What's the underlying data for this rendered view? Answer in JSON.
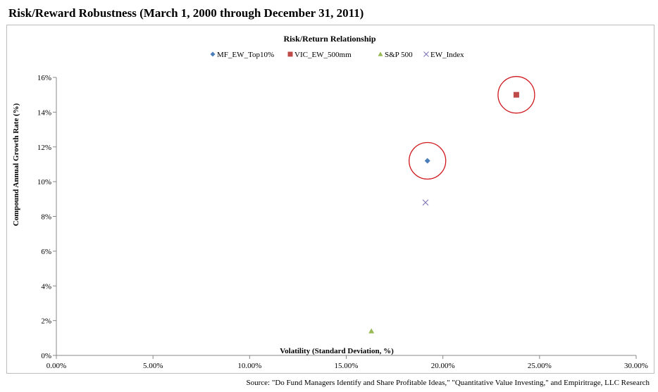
{
  "page_title": "Risk/Reward Robustness (March 1, 2000 through December 31, 2011)",
  "source": "Source: \"Do Fund Managers Identify and Share Profitable Ideas,\" \"Quantitative Value Investing,\" and Empiritrage, LLC Research",
  "chart_data": {
    "type": "scatter",
    "title": "Risk/Return Relationship",
    "xlabel": "Volatility (Standard Deviation, %)",
    "ylabel": "Compound Annual Growth Rate (%)",
    "xlim": [
      0,
      30
    ],
    "ylim": [
      0,
      16
    ],
    "xticks": [
      0,
      5,
      10,
      15,
      20,
      25,
      30
    ],
    "xtick_labels": [
      "0.00%",
      "5.00%",
      "10.00%",
      "15.00%",
      "20.00%",
      "25.00%",
      "30.00%"
    ],
    "yticks": [
      0,
      2,
      4,
      6,
      8,
      10,
      12,
      14,
      16
    ],
    "ytick_labels": [
      "0%",
      "2%",
      "4%",
      "6%",
      "8%",
      "10%",
      "12%",
      "14%",
      "16%"
    ],
    "grid": false,
    "legend_position": "top-center",
    "series": [
      {
        "name": "MF_EW_Top10%",
        "marker": "diamond",
        "color": "#4a7ebb",
        "x": 19.2,
        "y": 11.2,
        "highlighted": true
      },
      {
        "name": "VIC_EW_500mm",
        "marker": "square",
        "color": "#be4b48",
        "x": 23.8,
        "y": 15.0,
        "highlighted": true
      },
      {
        "name": "S&P 500",
        "marker": "triangle",
        "color": "#98b954",
        "x": 16.3,
        "y": 1.4,
        "highlighted": false
      },
      {
        "name": "EW_Index",
        "marker": "x",
        "color": "#7d6fb0",
        "x": 19.1,
        "y": 8.8,
        "highlighted": false
      }
    ],
    "highlight_color": "#d0181e"
  }
}
